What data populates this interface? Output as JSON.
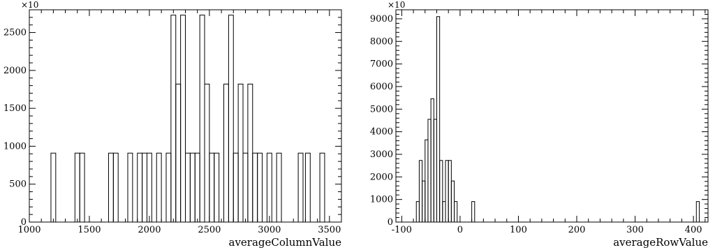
{
  "chart_data": [
    {
      "type": "histogram",
      "xlabel": "averageColumnValue",
      "ylabel": "",
      "multiplier": "×10",
      "xlim": [
        1000,
        3600
      ],
      "ylim": [
        0,
        2800
      ],
      "bin_width": 40,
      "x_ticks": [
        1000,
        1500,
        2000,
        2500,
        3000,
        3500
      ],
      "y_ticks": [
        0,
        500,
        1000,
        1500,
        2000,
        2500
      ],
      "bins": [
        {
          "x0": 1180,
          "value": 910
        },
        {
          "x0": 1380,
          "value": 910
        },
        {
          "x0": 1420,
          "value": 910
        },
        {
          "x0": 1660,
          "value": 910
        },
        {
          "x0": 1700,
          "value": 910
        },
        {
          "x0": 1820,
          "value": 910
        },
        {
          "x0": 1900,
          "value": 910
        },
        {
          "x0": 1940,
          "value": 910
        },
        {
          "x0": 1980,
          "value": 910
        },
        {
          "x0": 2060,
          "value": 910
        },
        {
          "x0": 2140,
          "value": 910
        },
        {
          "x0": 2180,
          "value": 2730
        },
        {
          "x0": 2220,
          "value": 1820
        },
        {
          "x0": 2260,
          "value": 2730
        },
        {
          "x0": 2300,
          "value": 910
        },
        {
          "x0": 2340,
          "value": 910
        },
        {
          "x0": 2380,
          "value": 910
        },
        {
          "x0": 2420,
          "value": 2730
        },
        {
          "x0": 2460,
          "value": 1820
        },
        {
          "x0": 2500,
          "value": 910
        },
        {
          "x0": 2540,
          "value": 910
        },
        {
          "x0": 2620,
          "value": 1820
        },
        {
          "x0": 2660,
          "value": 2730
        },
        {
          "x0": 2700,
          "value": 910
        },
        {
          "x0": 2740,
          "value": 1820
        },
        {
          "x0": 2780,
          "value": 910
        },
        {
          "x0": 2820,
          "value": 1820
        },
        {
          "x0": 2860,
          "value": 910
        },
        {
          "x0": 2900,
          "value": 910
        },
        {
          "x0": 2980,
          "value": 910
        },
        {
          "x0": 3060,
          "value": 910
        },
        {
          "x0": 3240,
          "value": 910
        },
        {
          "x0": 3300,
          "value": 910
        },
        {
          "x0": 3420,
          "value": 910
        }
      ]
    },
    {
      "type": "histogram",
      "xlabel": "averageRowValue",
      "ylabel": "",
      "multiplier": "×10",
      "xlim": [
        -110,
        425
      ],
      "ylim": [
        0,
        9400
      ],
      "bin_width": 5,
      "x_ticks": [
        -100,
        0,
        100,
        200,
        300,
        400
      ],
      "y_ticks": [
        0,
        1000,
        2000,
        3000,
        4000,
        5000,
        6000,
        7000,
        8000,
        9000
      ],
      "bins": [
        {
          "x0": -75,
          "value": 910
        },
        {
          "x0": -70,
          "value": 2730
        },
        {
          "x0": -65,
          "value": 1820
        },
        {
          "x0": -60,
          "value": 3640
        },
        {
          "x0": -55,
          "value": 4550
        },
        {
          "x0": -50,
          "value": 5460
        },
        {
          "x0": -45,
          "value": 4550
        },
        {
          "x0": -40,
          "value": 9100
        },
        {
          "x0": -35,
          "value": 2730
        },
        {
          "x0": -30,
          "value": 910
        },
        {
          "x0": -25,
          "value": 2730
        },
        {
          "x0": -20,
          "value": 2730
        },
        {
          "x0": -15,
          "value": 1820
        },
        {
          "x0": -10,
          "value": 910
        },
        {
          "x0": 20,
          "value": 910
        },
        {
          "x0": 405,
          "value": 910
        }
      ]
    }
  ]
}
